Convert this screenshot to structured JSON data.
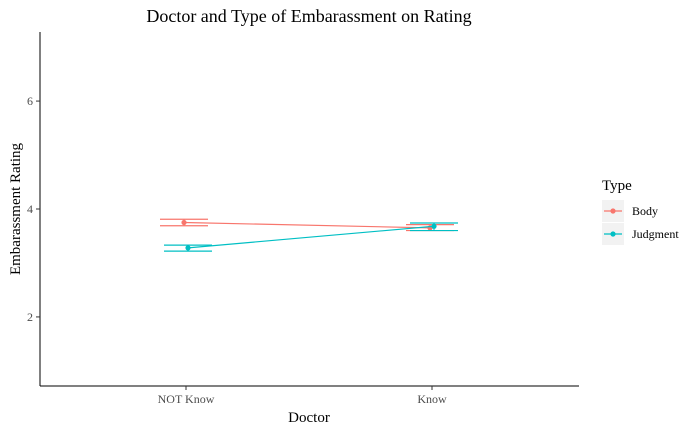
{
  "chart_data": {
    "type": "line",
    "title": "Doctor and Type of Embarassment on Rating",
    "xlabel": "Doctor",
    "ylabel": "Embarassment Rating",
    "categories": [
      "NOT Know",
      "Know"
    ],
    "ylim": [
      0.72,
      7.28
    ],
    "yticks": [
      2,
      4,
      6
    ],
    "grid": false,
    "legend": {
      "title": "Type",
      "position": "right"
    },
    "series": [
      {
        "name": "Body",
        "color": "#F8766D",
        "values": [
          3.75,
          3.65
        ],
        "ci_low": [
          3.69,
          3.6
        ],
        "ci_high": [
          3.81,
          3.71
        ]
      },
      {
        "name": "Judgment",
        "color": "#00BFC4",
        "values": [
          3.28,
          3.68
        ],
        "ci_low": [
          3.22,
          3.6
        ],
        "ci_high": [
          3.33,
          3.74
        ]
      }
    ]
  }
}
